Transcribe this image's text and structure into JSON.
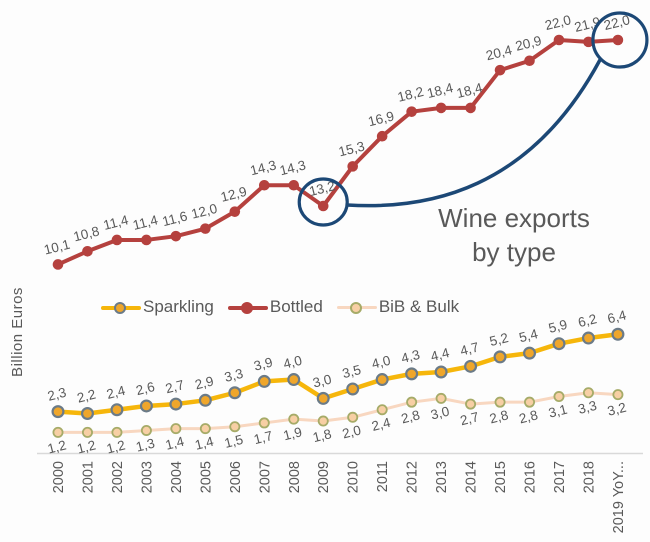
{
  "title": {
    "text": "Wine exports\nby type"
  },
  "y_axis_label": "Billion Euros",
  "legend": {
    "items": [
      {
        "label": "Sparkling"
      },
      {
        "label": "Bottled"
      },
      {
        "label": "BiB & Bulk"
      }
    ]
  },
  "colors": {
    "text": "#595959",
    "axis": "#d9d9d9",
    "annotation": "#1c4876",
    "background": "#fdfdfd"
  },
  "chart_data": {
    "type": "line",
    "title": "Wine exports by type",
    "xlabel": "",
    "ylabel": "Billion Euros",
    "ylim": [
      0,
      24
    ],
    "grid": false,
    "legend_position": "middle-left",
    "number_format": "comma-decimal",
    "categories": [
      "2000",
      "2001",
      "2002",
      "2003",
      "2004",
      "2005",
      "2006",
      "2007",
      "2008",
      "2009",
      "2010",
      "2011",
      "2012",
      "2013",
      "2014",
      "2015",
      "2016",
      "2017",
      "2018",
      "2019 YoY..."
    ],
    "series": [
      {
        "name": "Sparkling",
        "color": "#f6b60b",
        "marker_fill": "#efa62b",
        "marker_stroke": "#6b7b88",
        "marker_stroke_width": 2.2,
        "marker_radius": 5.4,
        "line_width": 4.5,
        "label_side": "above",
        "values": [
          2.3,
          2.2,
          2.4,
          2.6,
          2.7,
          2.9,
          3.3,
          3.9,
          4.0,
          3.0,
          3.5,
          4.0,
          4.3,
          4.4,
          4.7,
          5.2,
          5.4,
          5.9,
          6.2,
          6.4
        ]
      },
      {
        "name": "Bottled",
        "color": "#b5413e",
        "marker_fill": "#b5413e",
        "marker_stroke": "none",
        "marker_stroke_width": 0,
        "marker_radius": 5.3,
        "line_width": 4,
        "label_side": "above",
        "values": [
          10.1,
          10.8,
          11.4,
          11.4,
          11.6,
          12.0,
          12.9,
          14.3,
          14.3,
          13.2,
          15.3,
          16.9,
          18.2,
          18.4,
          18.4,
          20.4,
          20.9,
          22.0,
          21.9,
          22.0
        ]
      },
      {
        "name": "BiB & Bulk",
        "color": "#f8d7c0",
        "marker_fill": "#f7cfa4",
        "marker_stroke": "#a6ab68",
        "marker_stroke_width": 1.8,
        "marker_radius": 4.6,
        "line_width": 3,
        "label_side": "below",
        "values": [
          1.2,
          1.2,
          1.2,
          1.3,
          1.4,
          1.4,
          1.5,
          1.7,
          1.9,
          1.8,
          2.0,
          2.4,
          2.8,
          3.0,
          2.7,
          2.8,
          2.8,
          3.1,
          3.3,
          3.2
        ]
      }
    ],
    "annotations": {
      "color": "#1c4876",
      "circled_points": [
        {
          "series": "Bottled",
          "category": "2009",
          "value": 13.2
        },
        {
          "series": "Bottled",
          "category": "2019 YoY...",
          "value": 22.0
        }
      ],
      "connector": "curve between circled points"
    }
  }
}
